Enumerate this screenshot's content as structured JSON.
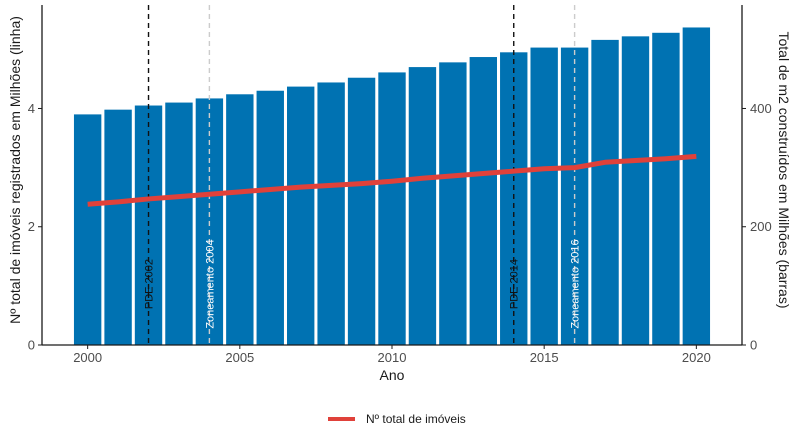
{
  "chart_data": {
    "type": "bar",
    "x": [
      2000,
      2001,
      2002,
      2003,
      2004,
      2005,
      2006,
      2007,
      2008,
      2009,
      2010,
      2011,
      2012,
      2013,
      2014,
      2015,
      2016,
      2017,
      2018,
      2019,
      2020
    ],
    "series": [
      {
        "name": "Total de m2 construídos",
        "kind": "bar",
        "axis": "right",
        "values": [
          390,
          398,
          405,
          410,
          417,
          424,
          430,
          437,
          444,
          452,
          461,
          470,
          478,
          487,
          495,
          503,
          503,
          516,
          522,
          528,
          537
        ],
        "color": "#0072B2"
      },
      {
        "name": "Nº total de imóveis",
        "kind": "line",
        "axis": "left",
        "values": [
          2.38,
          2.42,
          2.47,
          2.51,
          2.55,
          2.59,
          2.63,
          2.67,
          2.7,
          2.73,
          2.77,
          2.82,
          2.86,
          2.9,
          2.94,
          2.98,
          3.0,
          3.09,
          3.12,
          3.15,
          3.19
        ],
        "color": "#E0413A"
      }
    ],
    "xlabel": "Ano",
    "ylabel_left": "Nº total de imóveis registrados em Milhões (linha)",
    "ylabel_right": "Total de m2 construídos em Milhões (barras)",
    "xticks": [
      "2000",
      "2005",
      "2010",
      "2015",
      "2020"
    ],
    "xticks_values": [
      2000,
      2005,
      2010,
      2015,
      2020
    ],
    "yticks_left": [
      "0",
      "2",
      "4"
    ],
    "yticks_left_values": [
      0,
      2,
      4
    ],
    "yticks_right": [
      "0",
      "200",
      "400"
    ],
    "yticks_right_values": [
      0,
      200,
      400
    ],
    "xlim": [
      1998.5,
      2021.5
    ],
    "ylim_left": [
      0,
      5.75
    ],
    "ylim_right": [
      0,
      575
    ],
    "vlines": [
      {
        "x": 2002,
        "label": "PDE 2002",
        "style": "dashed",
        "color": "#111111"
      },
      {
        "x": 2004,
        "label": "Zoneamento 2004",
        "style": "dashed",
        "color": "#cccccc"
      },
      {
        "x": 2014,
        "label": "PDE 2014",
        "style": "dashed",
        "color": "#111111"
      },
      {
        "x": 2016,
        "label": "Zoneamento 2016",
        "style": "dashed",
        "color": "#cccccc"
      }
    ],
    "grid": false,
    "legend": {
      "position": "bottom",
      "entries": [
        "Nº total de imóveis"
      ]
    }
  }
}
